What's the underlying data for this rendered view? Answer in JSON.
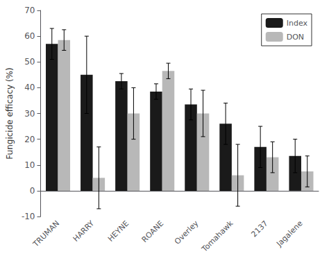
{
  "chart_data": {
    "type": "bar",
    "categories": [
      "TRUMAN",
      "HARRY",
      "HEYNE",
      "ROANE",
      "Overley",
      "Tomahawk",
      "2137",
      "Jagalene"
    ],
    "series": [
      {
        "name": "Index",
        "color": "#1a1a1a",
        "values": [
          57,
          45,
          42.5,
          38.5,
          33.5,
          26,
          17,
          13.5
        ],
        "errors": [
          6,
          15,
          3,
          3,
          6,
          8,
          8,
          6.5
        ]
      },
      {
        "name": "DON",
        "color": "#b8b8b8",
        "values": [
          58.5,
          5,
          30,
          46.5,
          30,
          6,
          13,
          7.5
        ],
        "errors": [
          4,
          12,
          10,
          3,
          9,
          12,
          6,
          6
        ]
      }
    ],
    "ylabel": "Fungicide efficacy (%)",
    "ylim": [
      -10,
      70
    ],
    "yticks": [
      -10,
      0,
      10,
      20,
      30,
      40,
      50,
      60,
      70
    ],
    "legend": "upper right",
    "grid": false
  }
}
